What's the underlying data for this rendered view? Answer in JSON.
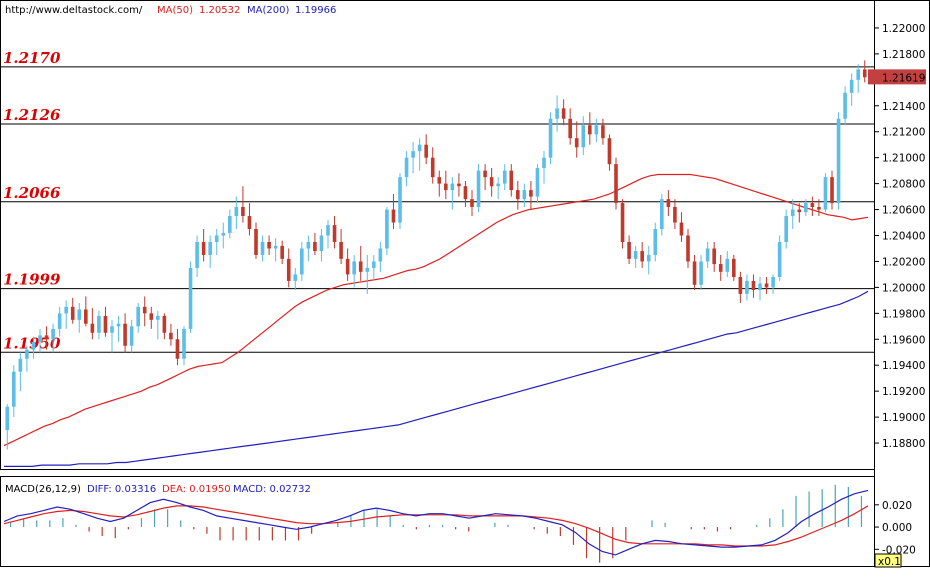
{
  "header": {
    "url": "http://www.deltastock.com/",
    "ma50": "MA(50)",
    "ma50_value": "1.20532",
    "ma200": "MA(200)",
    "ma200_value": "1.19966"
  },
  "macd_header": {
    "name": "MACD(26,12,9)",
    "diff": "DIFF: 0.03316",
    "dea": "DEA: 0.01950",
    "macd": "MACD: 0.02732"
  },
  "colors": {
    "bull": "#5bbde8",
    "bear": "#c0392b",
    "ma50": "#e02020",
    "ma200": "#2020c0",
    "level_label": "#dd0000",
    "price_tag": "#c24040",
    "multiplier_bg": "#ffff80"
  },
  "chart_data": [
    {
      "type": "candlestick",
      "title": "",
      "ylim": [
        1.186,
        1.222
      ],
      "y_ticks": [
        "1.22000",
        "1.21800",
        "1.21400",
        "1.21200",
        "1.21000",
        "1.20800",
        "1.20600",
        "1.20400",
        "1.20200",
        "1.20000",
        "1.19800",
        "1.19600",
        "1.19400",
        "1.19200",
        "1.19000",
        "1.18800"
      ],
      "last_price": "1.21619",
      "levels": [
        {
          "value": 1.217,
          "label": "1.2170"
        },
        {
          "value": 1.2126,
          "label": "1.2126"
        },
        {
          "value": 1.2066,
          "label": "1.2066"
        },
        {
          "value": 1.1999,
          "label": "1.1999"
        },
        {
          "value": 1.195,
          "label": "1.1950"
        }
      ],
      "candles": [
        [
          1.189,
          1.191,
          1.1875,
          1.1908
        ],
        [
          1.1908,
          1.194,
          1.19,
          1.1935
        ],
        [
          1.1935,
          1.195,
          1.192,
          1.1945
        ],
        [
          1.1945,
          1.1955,
          1.1935,
          1.1952
        ],
        [
          1.1952,
          1.1962,
          1.1945,
          1.1958
        ],
        [
          1.1958,
          1.1968,
          1.195,
          1.1963
        ],
        [
          1.1963,
          1.197,
          1.1952,
          1.196
        ],
        [
          1.196,
          1.1972,
          1.195,
          1.1968
        ],
        [
          1.1968,
          1.1985,
          1.1962,
          1.198
        ],
        [
          1.198,
          1.199,
          1.1968,
          1.1985
        ],
        [
          1.1985,
          1.1992,
          1.1972,
          1.1975
        ],
        [
          1.1975,
          1.1988,
          1.1965,
          1.1983
        ],
        [
          1.1983,
          1.1993,
          1.197,
          1.1972
        ],
        [
          1.1972,
          1.1984,
          1.196,
          1.1965
        ],
        [
          1.1965,
          1.1982,
          1.196,
          1.1978
        ],
        [
          1.1978,
          1.1985,
          1.1962,
          1.1965
        ],
        [
          1.1965,
          1.1975,
          1.195,
          1.197
        ],
        [
          1.197,
          1.1978,
          1.1958,
          1.1972
        ],
        [
          1.1972,
          1.198,
          1.195,
          1.1955
        ],
        [
          1.1955,
          1.1975,
          1.195,
          1.197
        ],
        [
          1.197,
          1.1988,
          1.1965,
          1.1985
        ],
        [
          1.1985,
          1.1993,
          1.197,
          1.198
        ],
        [
          1.198,
          1.1985,
          1.1968,
          1.1975
        ],
        [
          1.1975,
          1.1982,
          1.196,
          1.1978
        ],
        [
          1.1978,
          1.198,
          1.196,
          1.1965
        ],
        [
          1.1965,
          1.1972,
          1.1955,
          1.196
        ],
        [
          1.196,
          1.1968,
          1.194,
          1.1945
        ],
        [
          1.1945,
          1.197,
          1.194,
          1.1968
        ],
        [
          1.1968,
          1.202,
          1.1965,
          1.2015
        ],
        [
          1.2015,
          1.204,
          1.2008,
          1.2035
        ],
        [
          1.2035,
          1.2045,
          1.202,
          1.2025
        ],
        [
          1.2025,
          1.204,
          1.2015,
          1.2035
        ],
        [
          1.2035,
          1.2045,
          1.2025,
          1.204
        ],
        [
          1.204,
          1.205,
          1.203,
          1.2042
        ],
        [
          1.2042,
          1.206,
          1.2038,
          1.2055
        ],
        [
          1.2055,
          1.207,
          1.2045,
          1.2062
        ],
        [
          1.2062,
          1.2078,
          1.205,
          1.2055
        ],
        [
          1.2055,
          1.2065,
          1.204,
          1.2045
        ],
        [
          1.2045,
          1.205,
          1.2022,
          1.2025
        ],
        [
          1.2025,
          1.204,
          1.202,
          1.2035
        ],
        [
          1.2035,
          1.204,
          1.2025,
          1.203
        ],
        [
          1.203,
          1.2038,
          1.202,
          1.2032
        ],
        [
          1.2032,
          1.2036,
          1.2018,
          1.2022
        ],
        [
          1.2022,
          1.203,
          1.2,
          1.2005
        ],
        [
          1.2005,
          1.2015,
          1.1998,
          1.201
        ],
        [
          1.201,
          1.2035,
          1.2005,
          1.203
        ],
        [
          1.203,
          1.204,
          1.202,
          1.2035
        ],
        [
          1.2035,
          1.2042,
          1.2025,
          1.2028
        ],
        [
          1.2028,
          1.2045,
          1.202,
          1.204
        ],
        [
          1.204,
          1.2052,
          1.203,
          1.2048
        ],
        [
          1.2048,
          1.2055,
          1.203,
          1.2035
        ],
        [
          1.2035,
          1.2045,
          1.2018,
          1.2022
        ],
        [
          1.2022,
          1.203,
          1.2005,
          1.201
        ],
        [
          1.201,
          1.2025,
          1.2,
          1.202
        ],
        [
          1.202,
          1.2032,
          1.2005,
          1.2012
        ],
        [
          1.2012,
          1.2025,
          1.1995,
          1.2015
        ],
        [
          1.2015,
          1.2025,
          1.2005,
          1.202
        ],
        [
          1.202,
          1.2035,
          1.2012,
          1.203
        ],
        [
          1.203,
          1.2062,
          1.2025,
          1.206
        ],
        [
          1.206,
          1.2072,
          1.2045,
          1.205
        ],
        [
          1.205,
          1.2088,
          1.2045,
          1.2085
        ],
        [
          1.2085,
          1.2105,
          1.2078,
          1.21
        ],
        [
          1.21,
          1.2112,
          1.2088,
          1.2105
        ],
        [
          1.2105,
          1.2115,
          1.209,
          1.211
        ],
        [
          1.211,
          1.2118,
          1.2095,
          1.21
        ],
        [
          1.21,
          1.2108,
          1.208,
          1.2085
        ],
        [
          1.2085,
          1.209,
          1.207,
          1.208
        ],
        [
          1.208,
          1.209,
          1.2068,
          1.2075
        ],
        [
          1.2075,
          1.2085,
          1.206,
          1.208
        ],
        [
          1.208,
          1.2088,
          1.207,
          1.2078
        ],
        [
          1.2078,
          1.2082,
          1.2062,
          1.2068
        ],
        [
          1.2068,
          1.2075,
          1.2055,
          1.2062
        ],
        [
          1.2062,
          1.2095,
          1.2058,
          1.209
        ],
        [
          1.209,
          1.2095,
          1.2075,
          1.2085
        ],
        [
          1.2085,
          1.2092,
          1.207,
          1.2078
        ],
        [
          1.2078,
          1.2085,
          1.2068,
          1.208
        ],
        [
          1.208,
          1.2095,
          1.2075,
          1.209
        ],
        [
          1.209,
          1.2095,
          1.207,
          1.2075
        ],
        [
          1.2075,
          1.2082,
          1.206,
          1.2068
        ],
        [
          1.2068,
          1.208,
          1.2062,
          1.2075
        ],
        [
          1.2075,
          1.2082,
          1.206,
          1.207
        ],
        [
          1.207,
          1.2095,
          1.2065,
          1.2092
        ],
        [
          1.2092,
          1.2105,
          1.208,
          1.21
        ],
        [
          1.21,
          1.2135,
          1.2095,
          1.213
        ],
        [
          1.213,
          1.2148,
          1.212,
          1.2138
        ],
        [
          1.2138,
          1.2145,
          1.2125,
          1.213
        ],
        [
          1.213,
          1.2138,
          1.211,
          1.2115
        ],
        [
          1.2115,
          1.2128,
          1.21,
          1.2108
        ],
        [
          1.2108,
          1.2132,
          1.2102,
          1.2125
        ],
        [
          1.2125,
          1.2135,
          1.211,
          1.2118
        ],
        [
          1.2118,
          1.213,
          1.2112,
          1.2125
        ],
        [
          1.2125,
          1.213,
          1.211,
          1.2115
        ],
        [
          1.2115,
          1.2118,
          1.209,
          1.2095
        ],
        [
          1.2095,
          1.21,
          1.206,
          1.2065
        ],
        [
          1.2065,
          1.2068,
          1.203,
          1.2035
        ],
        [
          1.2035,
          1.204,
          1.2018,
          1.2022
        ],
        [
          1.2022,
          1.2032,
          1.2015,
          1.2028
        ],
        [
          1.2028,
          1.2035,
          1.2015,
          1.202
        ],
        [
          1.202,
          1.2032,
          1.201,
          1.2025
        ],
        [
          1.2025,
          1.205,
          1.202,
          1.2045
        ],
        [
          1.2045,
          1.2072,
          1.204,
          1.2068
        ],
        [
          1.2068,
          1.2075,
          1.2055,
          1.2062
        ],
        [
          1.2062,
          1.2068,
          1.2045,
          1.205
        ],
        [
          1.205,
          1.2058,
          1.2035,
          1.204
        ],
        [
          1.204,
          1.2045,
          1.2015,
          1.202
        ],
        [
          1.202,
          1.2025,
          1.1998,
          1.2002
        ],
        [
          1.2002,
          1.2025,
          1.1998,
          1.202
        ],
        [
          1.202,
          1.2035,
          1.2015,
          1.203
        ],
        [
          1.203,
          1.2035,
          1.2012,
          1.2018
        ],
        [
          1.2018,
          1.2025,
          1.2005,
          1.2012
        ],
        [
          1.2012,
          1.2028,
          1.2008,
          1.2022
        ],
        [
          1.2022,
          1.2025,
          1.2005,
          1.2008
        ],
        [
          1.2008,
          1.2012,
          1.1988,
          1.1995
        ],
        [
          1.1995,
          1.201,
          1.199,
          1.2005
        ],
        [
          1.2005,
          1.201,
          1.1992,
          1.1998
        ],
        [
          1.1998,
          1.2008,
          1.199,
          1.2003
        ],
        [
          1.2003,
          1.2008,
          1.1995,
          1.2
        ],
        [
          1.2,
          1.201,
          1.1995,
          1.2008
        ],
        [
          1.2008,
          1.204,
          1.2005,
          1.2035
        ],
        [
          1.2035,
          1.206,
          1.203,
          1.2055
        ],
        [
          1.2055,
          1.2068,
          1.2045,
          1.206
        ],
        [
          1.206,
          1.2065,
          1.205,
          1.2058
        ],
        [
          1.2058,
          1.2068,
          1.2055,
          1.2065
        ],
        [
          1.2065,
          1.207,
          1.2055,
          1.2062
        ],
        [
          1.2062,
          1.2068,
          1.2055,
          1.206
        ],
        [
          1.206,
          1.2088,
          1.2058,
          1.2085
        ],
        [
          1.2085,
          1.209,
          1.206,
          1.2065
        ],
        [
          1.2065,
          1.2135,
          1.206,
          1.213
        ],
        [
          1.213,
          1.2155,
          1.2125,
          1.215
        ],
        [
          1.215,
          1.2165,
          1.214,
          1.216
        ],
        [
          1.216,
          1.2172,
          1.215,
          1.2168
        ],
        [
          1.2168,
          1.2175,
          1.2158,
          1.2162
        ]
      ],
      "ma50": [
        1.1878,
        1.1881,
        1.1884,
        1.1887,
        1.189,
        1.1893,
        1.1895,
        1.1898,
        1.19,
        1.1903,
        1.1906,
        1.1908,
        1.191,
        1.1912,
        1.1914,
        1.1916,
        1.1918,
        1.192,
        1.1923,
        1.1925,
        1.1928,
        1.1931,
        1.1934,
        1.1937,
        1.1939,
        1.194,
        1.1941,
        1.1942,
        1.1946,
        1.195,
        1.1955,
        1.196,
        1.1965,
        1.197,
        1.1975,
        1.198,
        1.1985,
        1.1989,
        1.1992,
        1.1995,
        1.1998,
        1.2,
        1.2002,
        1.2003,
        1.2004,
        1.2005,
        1.2006,
        1.2007,
        1.2009,
        1.2011,
        1.2013,
        1.2014,
        1.2016,
        1.2019,
        1.2022,
        1.2026,
        1.203,
        1.2034,
        1.2038,
        1.2042,
        1.2046,
        1.205,
        1.2053,
        1.2056,
        1.2058,
        1.206,
        1.2061,
        1.2062,
        1.2063,
        1.2064,
        1.2065,
        1.2066,
        1.2067,
        1.2068,
        1.207,
        1.2072,
        1.2075,
        1.2078,
        1.2081,
        1.2084,
        1.2086,
        1.2087,
        1.2087,
        1.2087,
        1.2087,
        1.2087,
        1.2086,
        1.2085,
        1.2084,
        1.2082,
        1.208,
        1.2078,
        1.2076,
        1.2074,
        1.2072,
        1.207,
        1.2068,
        1.2066,
        1.2064,
        1.2062,
        1.206,
        1.2058,
        1.2056,
        1.2055,
        1.2054,
        1.2052,
        1.2053,
        1.2054
      ],
      "ma200": [
        1.1862,
        1.1862,
        1.1862,
        1.1862,
        1.1863,
        1.1863,
        1.1863,
        1.1863,
        1.1864,
        1.1864,
        1.1864,
        1.1864,
        1.1865,
        1.1865,
        1.1866,
        1.1867,
        1.1868,
        1.1869,
        1.187,
        1.1871,
        1.1872,
        1.1873,
        1.1874,
        1.1875,
        1.1876,
        1.1877,
        1.1878,
        1.1879,
        1.188,
        1.1881,
        1.1882,
        1.1883,
        1.1884,
        1.1885,
        1.1886,
        1.1887,
        1.1888,
        1.1889,
        1.189,
        1.1891,
        1.1892,
        1.1893,
        1.1894,
        1.1896,
        1.1898,
        1.19,
        1.1902,
        1.1904,
        1.1906,
        1.1908,
        1.191,
        1.1912,
        1.1914,
        1.1916,
        1.1918,
        1.192,
        1.1922,
        1.1924,
        1.1926,
        1.1928,
        1.193,
        1.1932,
        1.1934,
        1.1936,
        1.1938,
        1.194,
        1.1942,
        1.1944,
        1.1946,
        1.1948,
        1.195,
        1.1952,
        1.1954,
        1.1956,
        1.1958,
        1.196,
        1.1962,
        1.1964,
        1.1965,
        1.1967,
        1.1969,
        1.1971,
        1.1973,
        1.1975,
        1.1977,
        1.1979,
        1.1981,
        1.1983,
        1.1985,
        1.1987,
        1.199,
        1.1993,
        1.1997
      ]
    },
    {
      "type": "macd",
      "title": "",
      "ylim": [
        -0.035,
        0.045
      ],
      "y_ticks": [
        "0.020",
        "0.000",
        "-0.020"
      ],
      "multiplier": "x0.1",
      "diff": [
        0.005,
        0.01,
        0.012,
        0.015,
        0.018,
        0.016,
        0.012,
        0.008,
        0.005,
        0.008,
        0.015,
        0.022,
        0.025,
        0.022,
        0.018,
        0.015,
        0.01,
        0.008,
        0.006,
        0.004,
        0.002,
        0.0,
        -0.002,
        0.0,
        0.003,
        0.006,
        0.01,
        0.015,
        0.017,
        0.015,
        0.012,
        0.01,
        0.012,
        0.012,
        0.01,
        0.008,
        0.01,
        0.012,
        0.011,
        0.01,
        0.008,
        0.005,
        0.002,
        -0.005,
        -0.015,
        -0.022,
        -0.025,
        -0.02,
        -0.015,
        -0.012,
        -0.013,
        -0.015,
        -0.016,
        -0.017,
        -0.018,
        -0.018,
        -0.017,
        -0.016,
        -0.012,
        -0.005,
        0.005,
        0.012,
        0.018,
        0.025,
        0.03,
        0.033
      ],
      "dea": [
        0.003,
        0.006,
        0.009,
        0.012,
        0.014,
        0.015,
        0.014,
        0.012,
        0.01,
        0.009,
        0.011,
        0.014,
        0.017,
        0.019,
        0.019,
        0.018,
        0.016,
        0.014,
        0.012,
        0.01,
        0.008,
        0.006,
        0.004,
        0.003,
        0.003,
        0.004,
        0.005,
        0.007,
        0.009,
        0.01,
        0.011,
        0.011,
        0.011,
        0.011,
        0.011,
        0.01,
        0.01,
        0.01,
        0.01,
        0.01,
        0.009,
        0.008,
        0.006,
        0.003,
        -0.001,
        -0.006,
        -0.011,
        -0.014,
        -0.015,
        -0.015,
        -0.015,
        -0.015,
        -0.015,
        -0.016,
        -0.016,
        -0.017,
        -0.017,
        -0.017,
        -0.016,
        -0.013,
        -0.009,
        -0.004,
        0.001,
        0.006,
        0.012,
        0.019
      ],
      "bars": [
        0.004,
        0.008,
        0.006,
        0.006,
        0.008,
        0.002,
        -0.004,
        -0.008,
        -0.01,
        -0.002,
        0.008,
        0.016,
        0.016,
        0.006,
        -0.002,
        -0.006,
        -0.012,
        -0.012,
        -0.012,
        -0.012,
        -0.012,
        -0.012,
        -0.012,
        -0.006,
        0.0,
        0.004,
        0.01,
        0.016,
        0.016,
        0.01,
        0.002,
        -0.002,
        0.002,
        0.002,
        -0.002,
        -0.004,
        0.0,
        0.004,
        0.002,
        0.0,
        -0.002,
        -0.006,
        -0.008,
        -0.016,
        -0.028,
        -0.032,
        -0.028,
        -0.012,
        0.0,
        0.006,
        0.004,
        0.0,
        -0.002,
        -0.002,
        -0.004,
        -0.002,
        0.0,
        0.002,
        0.008,
        0.016,
        0.028,
        0.032,
        0.034,
        0.038,
        0.036,
        0.028
      ]
    }
  ]
}
